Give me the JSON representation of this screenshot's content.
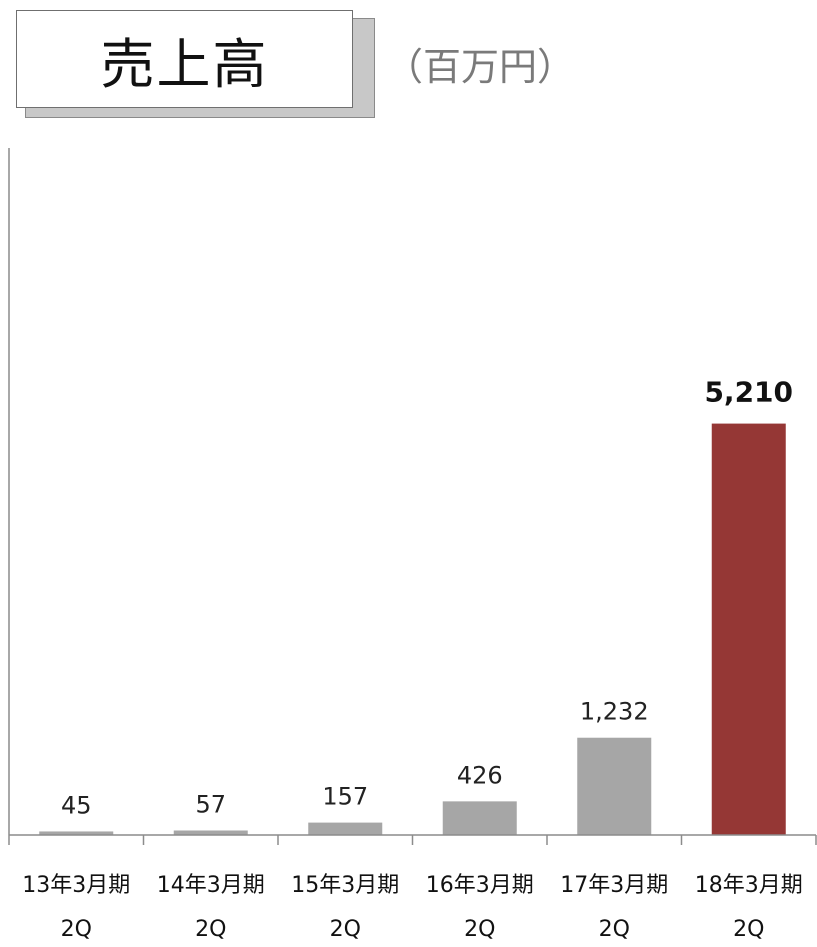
{
  "header": {
    "title": "売上高",
    "unit": "（百万円）"
  },
  "chart_data": {
    "type": "bar",
    "categories": [
      "13年3月期",
      "14年3月期",
      "15年3月期",
      "16年3月期",
      "17年3月期",
      "18年3月期"
    ],
    "sublabels": [
      "2Q",
      "2Q",
      "2Q",
      "2Q",
      "2Q",
      "2Q"
    ],
    "values": [
      45,
      57,
      157,
      426,
      1232,
      5210
    ],
    "data_labels": [
      "45",
      "57",
      "157",
      "426",
      "1,232",
      "5,210"
    ],
    "highlight_index": 5,
    "colors": {
      "default": "#a6a6a6",
      "highlight": "#953735",
      "axis": "#8c8c8c"
    },
    "ylim": [
      0,
      8700
    ],
    "grid": false
  }
}
